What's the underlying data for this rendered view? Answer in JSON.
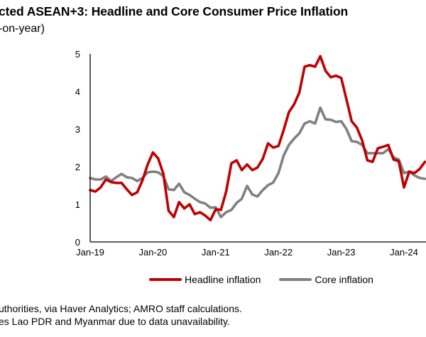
{
  "title": "cted ASEAN+3: Headline and Core Consumer Price Inflation",
  "subtitle": "-on-year)",
  "footnotes": [
    "uthorities, via Haver Analytics; AMRO staff calculations.",
    "es Lao PDR and Myanmar due to data unavailability."
  ],
  "chart_data": {
    "type": "line",
    "title": "cted ASEAN+3: Headline and Core Consumer Price Inflation",
    "subtitle": "-on-year)",
    "xlabel": "",
    "ylabel": "",
    "ylim": [
      0,
      5
    ],
    "yticks": [
      0,
      1,
      2,
      3,
      4,
      5
    ],
    "xtick_labels": [
      "Jan-19",
      "Jan-20",
      "Jan-21",
      "Jan-22",
      "Jan-23",
      "Jan-24"
    ],
    "x_start": "Jan-19",
    "x_frequency": "monthly",
    "grid": false,
    "legend_position": "bottom",
    "series": [
      {
        "name": "Headline inflation",
        "color": "#C00000",
        "values": [
          1.38,
          1.34,
          1.45,
          1.66,
          1.59,
          1.57,
          1.57,
          1.4,
          1.25,
          1.32,
          1.64,
          2.06,
          2.38,
          2.22,
          1.81,
          0.83,
          0.66,
          1.06,
          0.89,
          1.0,
          0.74,
          0.79,
          0.7,
          0.58,
          0.87,
          0.85,
          1.34,
          2.09,
          2.17,
          1.91,
          2.06,
          1.91,
          1.98,
          2.21,
          2.62,
          2.51,
          2.55,
          2.98,
          3.45,
          3.66,
          3.98,
          4.66,
          4.7,
          4.66,
          4.94,
          4.55,
          4.38,
          4.42,
          4.36,
          3.79,
          3.21,
          3.04,
          2.7,
          2.17,
          2.13,
          2.49,
          2.53,
          2.58,
          2.19,
          2.15,
          1.45,
          1.87,
          1.83,
          1.94,
          2.13
        ]
      },
      {
        "name": "Core inflation",
        "color": "#808080",
        "values": [
          1.7,
          1.66,
          1.66,
          1.74,
          1.62,
          1.72,
          1.81,
          1.72,
          1.7,
          1.62,
          1.7,
          1.85,
          1.87,
          1.85,
          1.75,
          1.4,
          1.38,
          1.55,
          1.32,
          1.25,
          1.15,
          1.06,
          1.02,
          0.91,
          0.92,
          0.66,
          0.79,
          0.85,
          1.04,
          1.15,
          1.49,
          1.26,
          1.21,
          1.38,
          1.51,
          1.58,
          1.83,
          2.3,
          2.58,
          2.75,
          2.89,
          3.15,
          3.21,
          3.15,
          3.57,
          3.26,
          3.25,
          3.19,
          3.21,
          3.0,
          2.68,
          2.66,
          2.58,
          2.36,
          2.36,
          2.36,
          2.36,
          2.47,
          2.25,
          2.19,
          1.83,
          1.87,
          1.77,
          1.7,
          1.68
        ]
      }
    ]
  }
}
